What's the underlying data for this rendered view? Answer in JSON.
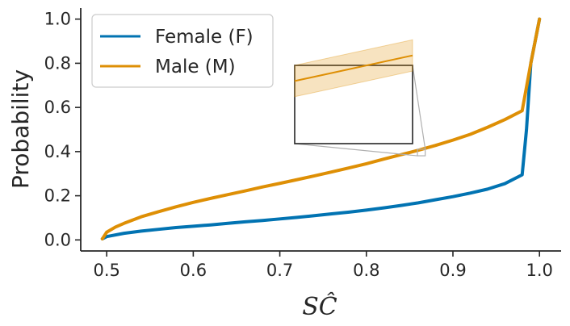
{
  "chart_data": {
    "type": "line",
    "title": "",
    "xlabel": "SĈ",
    "ylabel": "Probability",
    "xlim": [
      0.47,
      1.025
    ],
    "ylim": [
      -0.05,
      1.05
    ],
    "x_ticks": [
      0.5,
      0.6,
      0.7,
      0.8,
      0.9,
      1.0
    ],
    "x_tick_labels": [
      "0.5",
      "0.6",
      "0.7",
      "0.8",
      "0.9",
      "1.0"
    ],
    "y_ticks": [
      0.0,
      0.2,
      0.4,
      0.6,
      0.8,
      1.0
    ],
    "y_tick_labels": [
      "0.0",
      "0.2",
      "0.4",
      "0.6",
      "0.8",
      "1.0"
    ],
    "grid": false,
    "legend_position": "top-left",
    "series": [
      {
        "name": "Female (F)",
        "color": "#0173b2",
        "x": [
          0.495,
          0.5,
          0.52,
          0.54,
          0.56,
          0.58,
          0.6,
          0.62,
          0.64,
          0.66,
          0.68,
          0.7,
          0.72,
          0.74,
          0.76,
          0.78,
          0.8,
          0.82,
          0.84,
          0.86,
          0.88,
          0.9,
          0.92,
          0.94,
          0.96,
          0.98,
          0.985,
          0.99,
          1.0
        ],
        "values": [
          0.005,
          0.015,
          0.03,
          0.04,
          0.048,
          0.056,
          0.062,
          0.068,
          0.075,
          0.082,
          0.088,
          0.095,
          0.102,
          0.11,
          0.118,
          0.126,
          0.135,
          0.145,
          0.156,
          0.168,
          0.182,
          0.196,
          0.212,
          0.23,
          0.255,
          0.295,
          0.5,
          0.8,
          1.0
        ]
      },
      {
        "name": "Male (M)",
        "color": "#de8f05",
        "x": [
          0.495,
          0.5,
          0.51,
          0.52,
          0.54,
          0.56,
          0.58,
          0.6,
          0.62,
          0.64,
          0.66,
          0.68,
          0.7,
          0.72,
          0.74,
          0.76,
          0.78,
          0.8,
          0.82,
          0.84,
          0.86,
          0.88,
          0.9,
          0.92,
          0.94,
          0.96,
          0.98,
          0.99,
          1.0
        ],
        "values": [
          0.005,
          0.035,
          0.058,
          0.075,
          0.105,
          0.128,
          0.15,
          0.17,
          0.188,
          0.205,
          0.222,
          0.24,
          0.256,
          0.273,
          0.29,
          0.308,
          0.326,
          0.345,
          0.366,
          0.386,
          0.406,
          0.428,
          0.452,
          0.478,
          0.51,
          0.545,
          0.585,
          0.8,
          1.0
        ]
      }
    ],
    "inset": {
      "source_xlim": [
        0.859,
        0.868
      ],
      "source_ylim": [
        0.381,
        0.411
      ],
      "band_halfwidth": 0.006
    }
  }
}
